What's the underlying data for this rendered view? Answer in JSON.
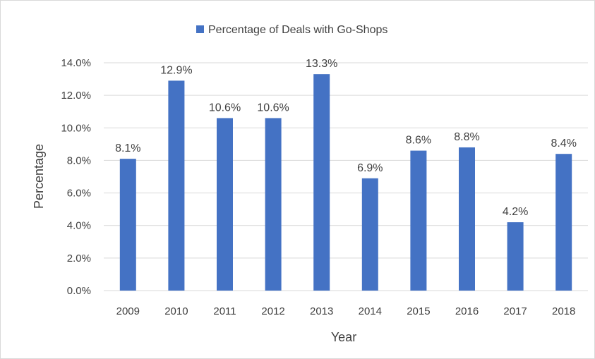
{
  "chart_data": {
    "type": "bar",
    "title": "",
    "xlabel": "Year",
    "ylabel": "Percentage",
    "categories": [
      "2009",
      "2010",
      "2011",
      "2012",
      "2013",
      "2014",
      "2015",
      "2016",
      "2017",
      "2018"
    ],
    "series": [
      {
        "name": "Percentage of Deals with Go-Shops",
        "values": [
          8.1,
          12.9,
          10.6,
          10.6,
          13.3,
          6.9,
          8.6,
          8.8,
          4.2,
          8.4
        ],
        "data_labels": [
          "8.1%",
          "12.9%",
          "10.6%",
          "10.6%",
          "13.3%",
          "6.9%",
          "8.6%",
          "8.8%",
          "4.2%",
          "8.4%"
        ]
      }
    ],
    "ylim": [
      0,
      14
    ],
    "yticks": [
      "0.0%",
      "2.0%",
      "4.0%",
      "6.0%",
      "8.0%",
      "10.0%",
      "12.0%",
      "14.0%"
    ],
    "grid": true,
    "legend_position": "top",
    "colors": {
      "bar": "#4472C4",
      "grid": "#d9d9d9",
      "text": "#404040"
    }
  }
}
